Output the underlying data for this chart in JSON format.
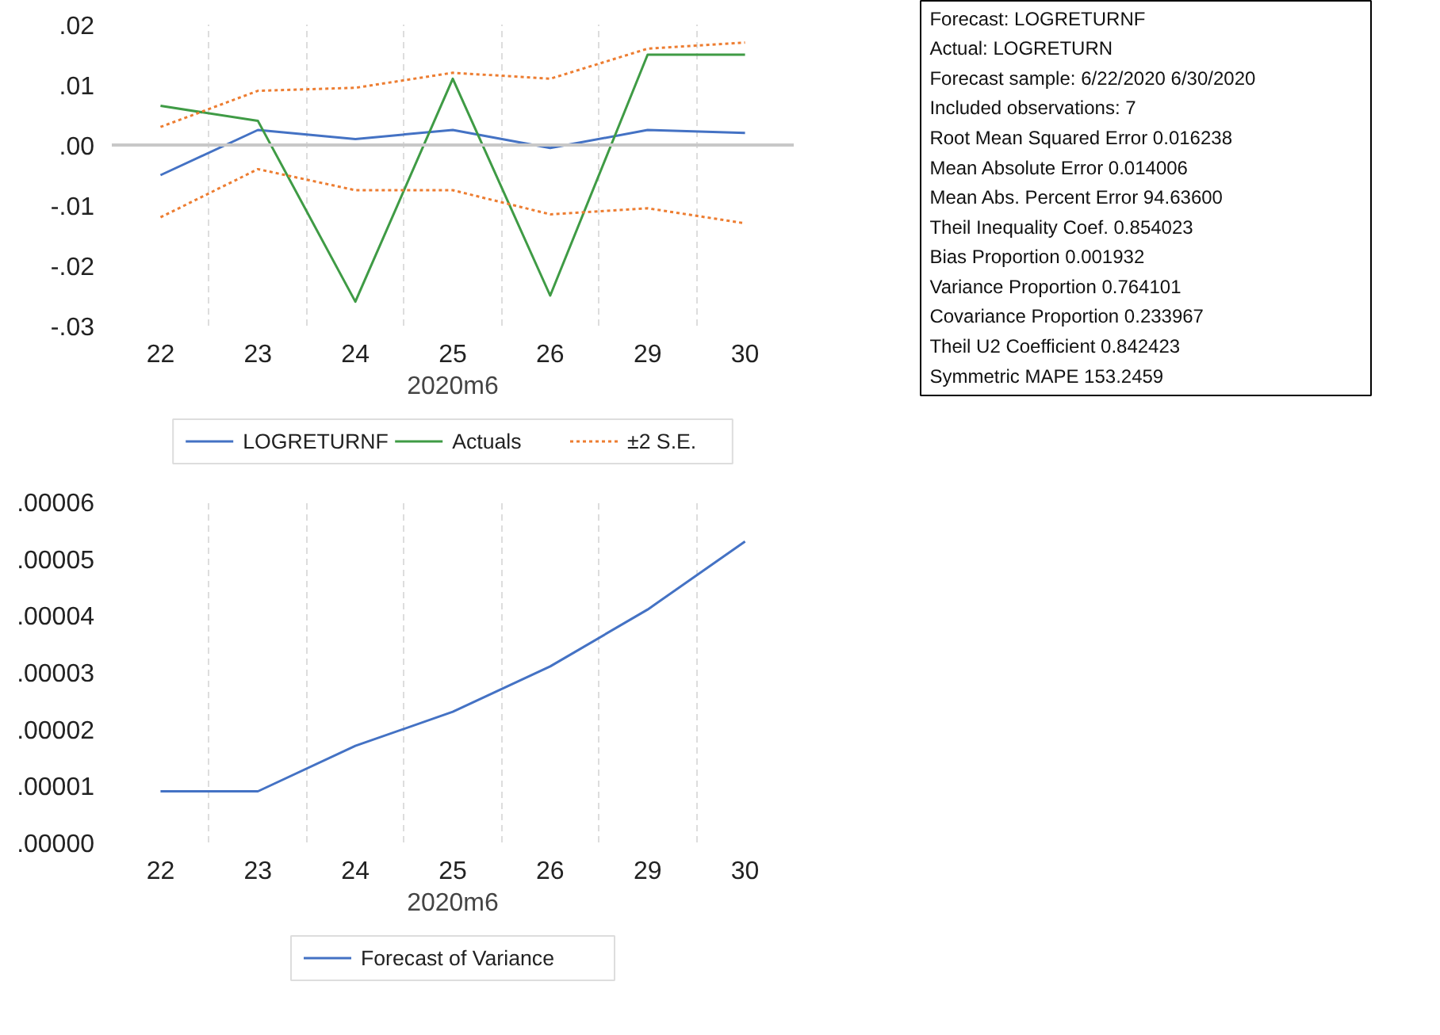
{
  "chart_data": [
    {
      "type": "line",
      "categories": [
        "22",
        "23",
        "24",
        "25",
        "26",
        "29",
        "30"
      ],
      "xlabel": "2020m6",
      "series": [
        {
          "name": "LOGRETURNF",
          "color": "#4472c4",
          "values": [
            -0.005,
            0.0025,
            0.001,
            0.0025,
            -0.0005,
            0.0025,
            0.002
          ]
        },
        {
          "name": "Actuals",
          "color": "#3f9b45",
          "values": [
            0.0065,
            0.004,
            -0.026,
            0.011,
            -0.025,
            0.015,
            0.015
          ]
        },
        {
          "name": "±2 S.E.",
          "color": "#ed7d31",
          "line_style": "dashed",
          "values": [
            0.003,
            0.009,
            0.0095,
            0.012,
            0.011,
            0.016,
            0.017
          ]
        },
        {
          "color": "#ed7d31",
          "line_style": "dashed",
          "values": [
            -0.012,
            -0.004,
            -0.0075,
            -0.0075,
            -0.0115,
            -0.0105,
            -0.013
          ]
        }
      ],
      "ylim": [
        -0.03,
        0.02
      ],
      "yticks": [
        {
          "value": -0.03,
          "label": "-.03"
        },
        {
          "value": -0.02,
          "label": "-.02"
        },
        {
          "value": -0.01,
          "label": "-.01"
        },
        {
          "value": 0,
          "label": ".00"
        },
        {
          "value": 0.01,
          "label": ".01"
        },
        {
          "value": 0.02,
          "label": ".02"
        }
      ],
      "ref_lines": [
        {
          "axis": "y",
          "value": 0,
          "color": "#c8c8c8"
        }
      ],
      "grid": "x",
      "legend": "bottom"
    },
    {
      "type": "line",
      "categories": [
        "22",
        "23",
        "24",
        "25",
        "26",
        "29",
        "30"
      ],
      "xlabel": "2020m6",
      "series": [
        {
          "name": "Forecast of Variance",
          "color": "#4472c4",
          "values": [
            9e-06,
            9e-06,
            1.7e-05,
            2.3e-05,
            3.1e-05,
            4.1e-05,
            5.3e-05
          ]
        }
      ],
      "ylim": [
        0,
        6e-05
      ],
      "yticks": [
        {
          "value": 0,
          "label": ".00000"
        },
        {
          "value": 1e-05,
          "label": ".00001"
        },
        {
          "value": 2e-05,
          "label": ".00002"
        },
        {
          "value": 3e-05,
          "label": ".00003"
        },
        {
          "value": 4e-05,
          "label": ".00004"
        },
        {
          "value": 5e-05,
          "label": ".00005"
        },
        {
          "value": 6e-05,
          "label": ".00006"
        }
      ],
      "grid": "x",
      "legend": "bottom"
    },
    {
      "type": "other",
      "annotations": [
        "Forecast: LOGRETURNF",
        "Actual: LOGRETURN",
        "Forecast sample: 6/22/2020 6/30/2020",
        "Included observations: 7",
        "Root Mean Squared Error        0.016238",
        "Mean Absolute Error     0.014006",
        "Mean Abs. Percent Error          94.63600",
        "Theil Inequality Coef.    0.854023",
        "   Bias Proportion          0.001932",
        "   Variance Proportion                0.764101",
        "   Covariance Proportion            0.233967",
        "Theil U2 Coefficient                 0.842423",
        "Symmetric MAPE          153.2459"
      ]
    }
  ]
}
